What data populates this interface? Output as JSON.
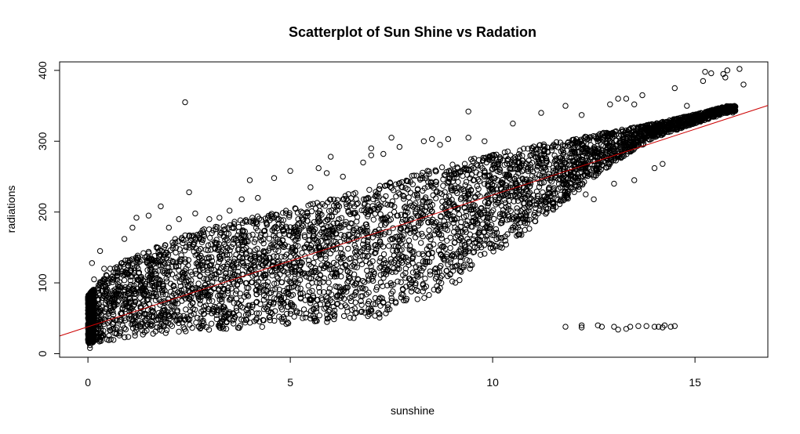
{
  "chart_data": {
    "type": "scatter",
    "title": "Scatterplot of Sun Shine vs Radation",
    "xlabel": "sunshine",
    "ylabel": "radiations",
    "xlim": [
      -0.7,
      16.8
    ],
    "ylim": [
      -5,
      412
    ],
    "x_ticks": [
      0,
      5,
      10,
      15
    ],
    "y_ticks": [
      0,
      100,
      200,
      300,
      400
    ],
    "x_tick_labels": [
      "0",
      "5",
      "10",
      "15"
    ],
    "y_tick_labels": [
      "0",
      "100",
      "200",
      "300",
      "400"
    ],
    "grid": false,
    "legend": "none",
    "marker": "open-circle",
    "marker_color": "#000000",
    "regression_line": {
      "color": "#cc0000",
      "intercept": 38,
      "slope": 18.6
    },
    "point_cloud": {
      "x_range": [
        0,
        16
      ],
      "lower_envelope": [
        [
          0,
          15
        ],
        [
          1,
          22
        ],
        [
          3,
          32
        ],
        [
          5,
          40
        ],
        [
          7.2,
          50
        ],
        [
          8,
          70
        ],
        [
          9,
          95
        ],
        [
          10,
          135
        ],
        [
          11,
          180
        ],
        [
          12,
          225
        ],
        [
          13,
          270
        ],
        [
          14,
          305
        ],
        [
          15,
          325
        ],
        [
          15.8,
          340
        ]
      ],
      "upper_envelope": [
        [
          0,
          82
        ],
        [
          0.5,
          115
        ],
        [
          1,
          135
        ],
        [
          2,
          160
        ],
        [
          3,
          178
        ],
        [
          4,
          192
        ],
        [
          5,
          205
        ],
        [
          6,
          220
        ],
        [
          7,
          235
        ],
        [
          8,
          252
        ],
        [
          9,
          268
        ],
        [
          10,
          282
        ],
        [
          11,
          293
        ],
        [
          12,
          303
        ],
        [
          13,
          315
        ],
        [
          14,
          325
        ],
        [
          15,
          338
        ],
        [
          15.8,
          350
        ]
      ]
    },
    "outliers": [
      {
        "x": 0.05,
        "y": 8
      },
      {
        "x": 0.05,
        "y": 12
      },
      {
        "x": 0.1,
        "y": 128
      },
      {
        "x": 0.15,
        "y": 105
      },
      {
        "x": 0.3,
        "y": 145
      },
      {
        "x": 0.4,
        "y": 120
      },
      {
        "x": 0.55,
        "y": 120
      },
      {
        "x": 0.9,
        "y": 162
      },
      {
        "x": 1.1,
        "y": 178
      },
      {
        "x": 1.2,
        "y": 192
      },
      {
        "x": 1.5,
        "y": 195
      },
      {
        "x": 1.8,
        "y": 208
      },
      {
        "x": 2.0,
        "y": 178
      },
      {
        "x": 2.25,
        "y": 190
      },
      {
        "x": 2.4,
        "y": 355
      },
      {
        "x": 2.5,
        "y": 228
      },
      {
        "x": 2.65,
        "y": 198
      },
      {
        "x": 3.0,
        "y": 190
      },
      {
        "x": 3.25,
        "y": 192
      },
      {
        "x": 3.5,
        "y": 202
      },
      {
        "x": 3.8,
        "y": 218
      },
      {
        "x": 4.0,
        "y": 245
      },
      {
        "x": 4.2,
        "y": 220
      },
      {
        "x": 4.6,
        "y": 248
      },
      {
        "x": 5.0,
        "y": 258
      },
      {
        "x": 5.5,
        "y": 235
      },
      {
        "x": 5.7,
        "y": 262
      },
      {
        "x": 5.9,
        "y": 255
      },
      {
        "x": 6.0,
        "y": 278
      },
      {
        "x": 6.3,
        "y": 250
      },
      {
        "x": 6.8,
        "y": 270
      },
      {
        "x": 7.0,
        "y": 290
      },
      {
        "x": 7.0,
        "y": 280
      },
      {
        "x": 7.3,
        "y": 282
      },
      {
        "x": 7.5,
        "y": 305
      },
      {
        "x": 7.7,
        "y": 292
      },
      {
        "x": 8.3,
        "y": 300
      },
      {
        "x": 8.5,
        "y": 303
      },
      {
        "x": 8.7,
        "y": 295
      },
      {
        "x": 8.9,
        "y": 303
      },
      {
        "x": 9.4,
        "y": 342
      },
      {
        "x": 9.4,
        "y": 305
      },
      {
        "x": 9.8,
        "y": 300
      },
      {
        "x": 10.5,
        "y": 325
      },
      {
        "x": 11.2,
        "y": 340
      },
      {
        "x": 11.8,
        "y": 350
      },
      {
        "x": 12.2,
        "y": 337
      },
      {
        "x": 12.9,
        "y": 352
      },
      {
        "x": 13.1,
        "y": 360
      },
      {
        "x": 13.3,
        "y": 360
      },
      {
        "x": 13.5,
        "y": 352
      },
      {
        "x": 13.7,
        "y": 365
      },
      {
        "x": 14.5,
        "y": 375
      },
      {
        "x": 14.8,
        "y": 350
      },
      {
        "x": 15.2,
        "y": 385
      },
      {
        "x": 15.25,
        "y": 398
      },
      {
        "x": 15.4,
        "y": 396
      },
      {
        "x": 15.7,
        "y": 395
      },
      {
        "x": 15.75,
        "y": 390
      },
      {
        "x": 15.8,
        "y": 400
      },
      {
        "x": 16.1,
        "y": 402
      },
      {
        "x": 16.2,
        "y": 380
      },
      {
        "x": 12.3,
        "y": 225
      },
      {
        "x": 12.5,
        "y": 218
      },
      {
        "x": 13.0,
        "y": 240
      },
      {
        "x": 13.5,
        "y": 245
      },
      {
        "x": 14.0,
        "y": 262
      },
      {
        "x": 14.2,
        "y": 268
      },
      {
        "x": 11.5,
        "y": 208
      },
      {
        "x": 11.3,
        "y": 215
      },
      {
        "x": 11.8,
        "y": 38
      },
      {
        "x": 12.2,
        "y": 40
      },
      {
        "x": 12.2,
        "y": 37
      },
      {
        "x": 12.6,
        "y": 40
      },
      {
        "x": 12.7,
        "y": 38
      },
      {
        "x": 13.0,
        "y": 38
      },
      {
        "x": 13.1,
        "y": 34
      },
      {
        "x": 13.3,
        "y": 35
      },
      {
        "x": 13.4,
        "y": 38
      },
      {
        "x": 13.6,
        "y": 39
      },
      {
        "x": 13.8,
        "y": 39
      },
      {
        "x": 14.0,
        "y": 38
      },
      {
        "x": 14.1,
        "y": 38
      },
      {
        "x": 14.2,
        "y": 37
      },
      {
        "x": 14.25,
        "y": 40
      },
      {
        "x": 14.4,
        "y": 38
      },
      {
        "x": 14.5,
        "y": 39
      }
    ]
  }
}
